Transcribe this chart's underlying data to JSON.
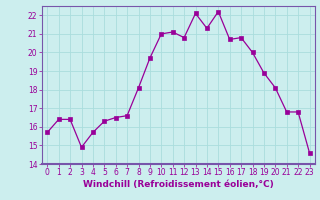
{
  "x": [
    0,
    1,
    2,
    3,
    4,
    5,
    6,
    7,
    8,
    9,
    10,
    11,
    12,
    13,
    14,
    15,
    16,
    17,
    18,
    19,
    20,
    21,
    22,
    23
  ],
  "y": [
    15.7,
    16.4,
    16.4,
    14.9,
    15.7,
    16.3,
    16.5,
    16.6,
    18.1,
    19.7,
    21.0,
    21.1,
    20.8,
    22.1,
    21.3,
    22.2,
    20.7,
    20.8,
    20.0,
    18.9,
    18.1,
    16.8,
    16.8,
    14.6
  ],
  "line_color": "#990099",
  "marker": "s",
  "marker_size": 2.5,
  "bg_color": "#cceeee",
  "grid_color": "#aadddd",
  "xlabel": "Windchill (Refroidissement éolien,°C)",
  "ylim": [
    14,
    22.5
  ],
  "yticks": [
    14,
    15,
    16,
    17,
    18,
    19,
    20,
    21,
    22
  ],
  "xticks": [
    0,
    1,
    2,
    3,
    4,
    5,
    6,
    7,
    8,
    9,
    10,
    11,
    12,
    13,
    14,
    15,
    16,
    17,
    18,
    19,
    20,
    21,
    22,
    23
  ],
  "tick_fontsize": 5.5,
  "label_fontsize": 6.5,
  "axis_bg": "#7755aa",
  "spine_color": "#7755aa"
}
